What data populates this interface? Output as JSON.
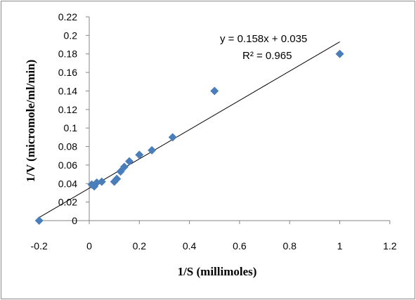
{
  "chart_data": {
    "type": "scatter",
    "xlabel": "1/S (millimoles)",
    "ylabel": "1/V (micromole/ml/min)",
    "xlim": [
      -0.2,
      1.2
    ],
    "ylim": [
      0,
      0.22
    ],
    "x_ticks": [
      -0.2,
      0,
      0.2,
      0.4,
      0.6,
      0.8,
      1,
      1.2
    ],
    "y_ticks": [
      0,
      0.02,
      0.04,
      0.06,
      0.08,
      0.1,
      0.12,
      0.14,
      0.16,
      0.18,
      0.2,
      0.22
    ],
    "x_tick_labels": [
      "-0.2",
      "0",
      "0.2",
      "0.4",
      "0.6",
      "0.8",
      "1",
      "1.2"
    ],
    "y_tick_labels": [
      "0",
      "0.02",
      "0.04",
      "0.06",
      "0.08",
      "0.1",
      "0.12",
      "0.14",
      "0.16",
      "0.18",
      "0.2",
      "0.22"
    ],
    "grid": false,
    "marker_color": "#4a7ebb",
    "trendline": {
      "slope": 0.158,
      "intercept": 0.035,
      "color": "#000000"
    },
    "annotations": {
      "equation": "y = 0.158x + 0.035",
      "r_squared": "R² = 0.965"
    },
    "points": [
      {
        "x": -0.2,
        "y": 0.0
      },
      {
        "x": 0.01,
        "y": 0.039
      },
      {
        "x": 0.02,
        "y": 0.037
      },
      {
        "x": 0.03,
        "y": 0.041
      },
      {
        "x": 0.05,
        "y": 0.042
      },
      {
        "x": 0.1,
        "y": 0.042
      },
      {
        "x": 0.11,
        "y": 0.045
      },
      {
        "x": 0.125,
        "y": 0.053
      },
      {
        "x": 0.14,
        "y": 0.058
      },
      {
        "x": 0.16,
        "y": 0.064
      },
      {
        "x": 0.2,
        "y": 0.071
      },
      {
        "x": 0.25,
        "y": 0.076
      },
      {
        "x": 0.333,
        "y": 0.09
      },
      {
        "x": 0.5,
        "y": 0.14
      },
      {
        "x": 1.0,
        "y": 0.18
      }
    ]
  }
}
